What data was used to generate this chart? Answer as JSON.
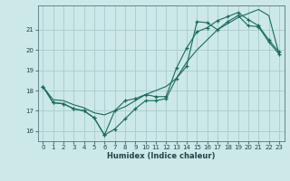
{
  "title": "",
  "xlabel": "Humidex (Indice chaleur)",
  "background_color": "#cce8e8",
  "grid_color": "#aacccc",
  "line_color": "#1a6b5a",
  "xlim": [
    -0.5,
    23.5
  ],
  "ylim": [
    15.5,
    22.2
  ],
  "xticks": [
    0,
    1,
    2,
    3,
    4,
    5,
    6,
    7,
    8,
    9,
    10,
    11,
    12,
    13,
    14,
    15,
    16,
    17,
    18,
    19,
    20,
    21,
    22,
    23
  ],
  "yticks": [
    16,
    17,
    18,
    19,
    20,
    21
  ],
  "line1_x": [
    0,
    1,
    2,
    3,
    4,
    5,
    6,
    7,
    8,
    9,
    10,
    11,
    12,
    13,
    14,
    15,
    16,
    17,
    18,
    19,
    20,
    21,
    22,
    23
  ],
  "line1_y": [
    18.2,
    17.4,
    17.35,
    17.1,
    17.0,
    16.65,
    15.8,
    16.1,
    16.6,
    17.1,
    17.5,
    17.5,
    17.6,
    18.6,
    19.2,
    21.4,
    21.35,
    21.0,
    21.4,
    21.7,
    21.2,
    21.15,
    20.4,
    19.8
  ],
  "line2_x": [
    0,
    1,
    2,
    3,
    4,
    5,
    6,
    7,
    8,
    9,
    10,
    11,
    12,
    13,
    14,
    15,
    16,
    17,
    18,
    19,
    20,
    21,
    22,
    23
  ],
  "line2_y": [
    18.2,
    17.4,
    17.35,
    17.1,
    17.0,
    16.65,
    15.8,
    17.0,
    17.5,
    17.6,
    17.8,
    17.7,
    17.7,
    19.1,
    20.1,
    20.9,
    21.1,
    21.45,
    21.65,
    21.85,
    21.5,
    21.2,
    20.5,
    19.9
  ],
  "line3_x": [
    0,
    1,
    2,
    3,
    4,
    5,
    6,
    7,
    8,
    9,
    10,
    11,
    12,
    13,
    14,
    15,
    16,
    17,
    18,
    19,
    20,
    21,
    22,
    23
  ],
  "line3_y": [
    18.2,
    17.55,
    17.5,
    17.3,
    17.15,
    16.9,
    16.8,
    17.0,
    17.2,
    17.5,
    17.8,
    18.0,
    18.2,
    18.6,
    19.4,
    20.0,
    20.5,
    21.0,
    21.3,
    21.6,
    21.8,
    22.0,
    21.7,
    19.8
  ]
}
